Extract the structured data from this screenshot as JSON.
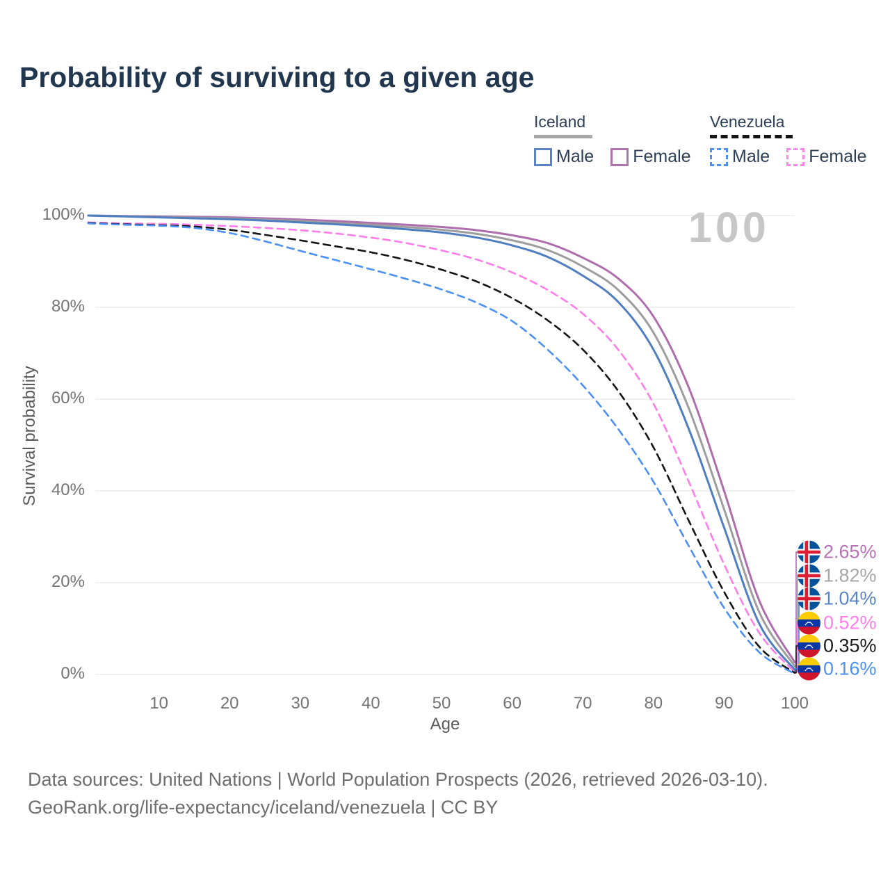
{
  "title": "Probability of surviving to a given age",
  "watermark": "100",
  "legend": {
    "iceland": {
      "label": "Iceland",
      "male": "Male",
      "female": "Female"
    },
    "venezuela": {
      "label": "Venezuela",
      "male": "Male",
      "female": "Female"
    }
  },
  "axes": {
    "y_label": "Survival probability",
    "x_label": "Age",
    "y_ticks": [
      "100%",
      "80%",
      "60%",
      "40%",
      "20%",
      "0%"
    ],
    "x_ticks": [
      "10",
      "20",
      "30",
      "40",
      "50",
      "60",
      "70",
      "80",
      "90",
      "100"
    ]
  },
  "end_labels": [
    {
      "flag": "iceland",
      "text": "2.65%",
      "color": "#b573b5"
    },
    {
      "flag": "iceland",
      "text": "1.82%",
      "color": "#a6a6a6"
    },
    {
      "flag": "iceland",
      "text": "1.04%",
      "color": "#5b84c4"
    },
    {
      "flag": "venezuela",
      "text": "0.52%",
      "color": "#ff7de9"
    },
    {
      "flag": "venezuela",
      "text": "0.35%",
      "color": "#1a1a1a"
    },
    {
      "flag": "venezuela",
      "text": "0.16%",
      "color": "#4a90f7"
    }
  ],
  "footer": {
    "line1": "Data sources: United Nations | World Population Prospects (2026, retrieved 2026-03-10).",
    "line2": "GeoRank.org/life-expectancy/iceland/venezuela | CC BY"
  },
  "colors": {
    "title": "#21374f",
    "gridline": "#ececec",
    "iceland_female": "#ae6dad",
    "iceland_both": "#9d9d9d",
    "iceland_male": "#4e7dc0",
    "venezuela_female": "#ff7de9",
    "venezuela_both": "#141414",
    "venezuela_male": "#4b90f5"
  },
  "chart_data": {
    "type": "line",
    "title": "Probability of surviving to a given age",
    "xlabel": "Age",
    "ylabel": "Survival probability",
    "xlim": [
      0,
      100
    ],
    "ylim": [
      0,
      100
    ],
    "grid": "horizontal",
    "legend_position": "top-right",
    "x": [
      0,
      5,
      10,
      15,
      20,
      25,
      30,
      35,
      40,
      45,
      50,
      55,
      60,
      65,
      70,
      75,
      80,
      85,
      90,
      95,
      100
    ],
    "series": [
      {
        "name": "Iceland Female",
        "color": "#ae6dad",
        "style": "solid",
        "values": [
          100,
          99.9,
          99.8,
          99.7,
          99.6,
          99.4,
          99.1,
          98.8,
          98.4,
          98.0,
          97.5,
          96.8,
          95.7,
          94.0,
          90.8,
          86.3,
          78.0,
          62.5,
          40.0,
          16.0,
          2.65
        ]
      },
      {
        "name": "Iceland Both sexes",
        "color": "#9d9d9d",
        "style": "solid",
        "values": [
          100,
          99.85,
          99.7,
          99.55,
          99.4,
          99.1,
          98.8,
          98.4,
          98.0,
          97.5,
          96.9,
          96.0,
          94.6,
          92.5,
          88.9,
          83.8,
          74.5,
          58.0,
          36.0,
          13.5,
          1.82
        ]
      },
      {
        "name": "Iceland Male",
        "color": "#4e7dc0",
        "style": "solid",
        "values": [
          100,
          99.8,
          99.6,
          99.4,
          99.2,
          98.9,
          98.5,
          98.1,
          97.6,
          97.0,
          96.3,
          95.2,
          93.5,
          91.0,
          86.9,
          81.2,
          70.8,
          53.5,
          32.0,
          11.0,
          1.04
        ]
      },
      {
        "name": "Venezuela Female",
        "color": "#ff7de9",
        "style": "dashed",
        "values": [
          98.5,
          98.3,
          98.2,
          98.0,
          97.7,
          97.3,
          96.8,
          96.1,
          95.2,
          94.0,
          92.4,
          90.4,
          87.6,
          83.8,
          78.6,
          70.8,
          59.0,
          42.0,
          24.0,
          9.0,
          0.52
        ]
      },
      {
        "name": "Venezuela Both sexes",
        "color": "#141414",
        "style": "dashed",
        "values": [
          98.4,
          98.1,
          97.9,
          97.6,
          96.9,
          95.8,
          94.6,
          93.3,
          92.0,
          90.3,
          88.2,
          85.6,
          82.0,
          77.2,
          70.8,
          61.8,
          49.5,
          33.5,
          18.0,
          6.0,
          0.35
        ]
      },
      {
        "name": "Venezuela Male",
        "color": "#4b90f5",
        "style": "dashed",
        "values": [
          98.3,
          98.0,
          97.8,
          97.3,
          96.2,
          94.4,
          92.3,
          90.3,
          88.3,
          86.2,
          83.9,
          81.0,
          77.0,
          70.8,
          63.0,
          53.5,
          42.0,
          28.0,
          14.5,
          4.8,
          0.16
        ]
      }
    ]
  }
}
